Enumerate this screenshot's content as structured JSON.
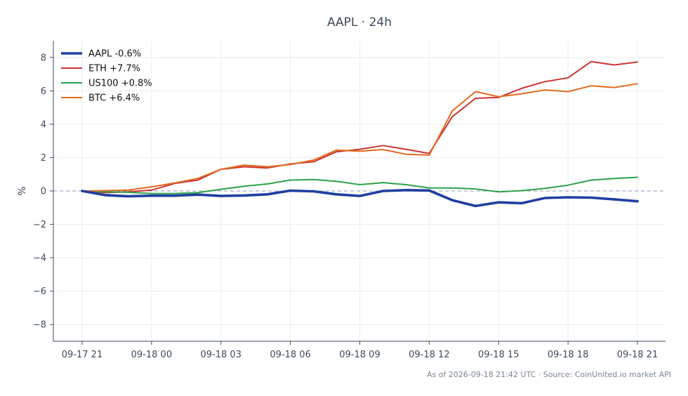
{
  "chart_data": {
    "type": "line",
    "title": "AAPL · 24h",
    "xlabel": "",
    "ylabel": "%",
    "x_ticks": [
      "09-17 21",
      "09-18 00",
      "09-18 03",
      "09-18 06",
      "09-18 09",
      "09-18 12",
      "09-18 15",
      "09-18 18",
      "09-18 21"
    ],
    "x_hours": [
      0,
      1,
      2,
      3,
      4,
      5,
      6,
      7,
      8,
      9,
      10,
      11,
      12,
      13,
      14,
      15,
      16,
      17,
      18,
      19,
      20,
      21,
      22,
      23,
      24
    ],
    "ylim": [
      -9,
      9
    ],
    "yticks": [
      -8,
      -6,
      -4,
      -2,
      0,
      2,
      4,
      6,
      8
    ],
    "ytick_labels": [
      "−8",
      "−6",
      "−4",
      "−2",
      "0",
      "2",
      "4",
      "6",
      "8"
    ],
    "grid": true,
    "zero_line": true,
    "legend_position": "top-left",
    "series": [
      {
        "name": "AAPL -0.6%",
        "color": "#1f3fa0",
        "emphasis": true,
        "values": [
          0.0,
          -0.25,
          -0.32,
          -0.28,
          -0.28,
          -0.22,
          -0.3,
          -0.27,
          -0.2,
          0.02,
          -0.02,
          -0.2,
          -0.3,
          0.0,
          0.05,
          0.03,
          -0.55,
          -0.9,
          -0.68,
          -0.73,
          -0.42,
          -0.38,
          -0.4,
          -0.5,
          -0.62
        ]
      },
      {
        "name": "ETH +7.7%",
        "color": "#cc3333",
        "emphasis": false,
        "values": [
          0.0,
          -0.1,
          -0.05,
          0.05,
          0.45,
          0.65,
          1.3,
          1.45,
          1.38,
          1.62,
          1.75,
          2.35,
          2.5,
          2.72,
          2.5,
          2.25,
          4.45,
          5.55,
          5.6,
          6.15,
          6.55,
          6.78,
          7.75,
          7.55,
          7.72
        ]
      },
      {
        "name": "US100 +0.8%",
        "color": "#2ca24a",
        "emphasis": false,
        "values": [
          0.0,
          -0.05,
          -0.08,
          -0.15,
          -0.15,
          -0.1,
          0.1,
          0.28,
          0.42,
          0.65,
          0.68,
          0.58,
          0.38,
          0.5,
          0.38,
          0.18,
          0.18,
          0.12,
          -0.05,
          0.02,
          0.15,
          0.35,
          0.65,
          0.75,
          0.82
        ]
      },
      {
        "name": "BTC +6.4%",
        "color": "#e06a20",
        "emphasis": false,
        "values": [
          0.0,
          0.02,
          0.05,
          0.25,
          0.48,
          0.75,
          1.3,
          1.55,
          1.45,
          1.58,
          1.85,
          2.45,
          2.38,
          2.48,
          2.2,
          2.15,
          4.8,
          5.95,
          5.65,
          5.82,
          6.05,
          5.95,
          6.3,
          6.2,
          6.42
        ]
      }
    ]
  },
  "footer": {
    "text": "As of 2026-09-18 21:42 UTC · Source: CoinUnited.io market API"
  }
}
